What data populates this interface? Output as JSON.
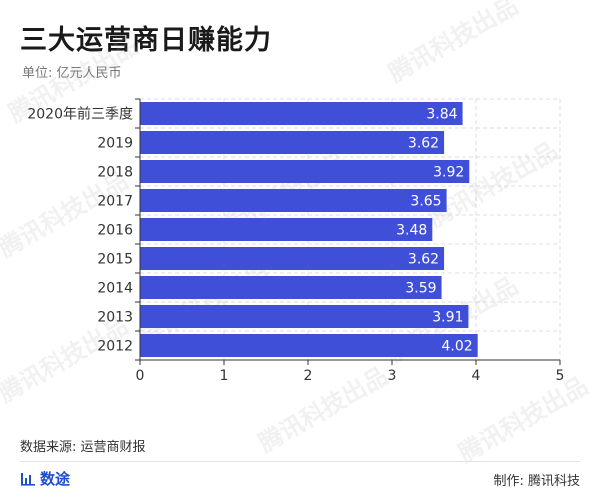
{
  "header": {
    "title": "三大运营商日赚能力",
    "unit": "单位: 亿元人民币"
  },
  "watermark": "腾讯科技出品",
  "footer": {
    "source": "数据来源: 运营商财报",
    "brand": "数途",
    "brand_icon": "bar-chart-icon",
    "credit": "制作: 腾讯科技"
  },
  "colors": {
    "bar": "#3f4fd8",
    "brand": "#1f4fd0"
  },
  "chart_data": {
    "type": "bar",
    "orientation": "horizontal",
    "categories": [
      "2020年前三季度",
      "2019",
      "2018",
      "2017",
      "2016",
      "2015",
      "2014",
      "2013",
      "2012"
    ],
    "values": [
      3.84,
      3.62,
      3.92,
      3.65,
      3.48,
      3.62,
      3.59,
      3.91,
      4.02
    ],
    "value_labels": [
      "3.84",
      "3.62",
      "3.92",
      "3.65",
      "3.48",
      "3.62",
      "3.59",
      "3.91",
      "4.02"
    ],
    "xlim": [
      0,
      5
    ],
    "xticks": [
      "0",
      "1",
      "2",
      "3",
      "4",
      "5"
    ],
    "grid": true,
    "bar_color": "#3f4fd8"
  }
}
